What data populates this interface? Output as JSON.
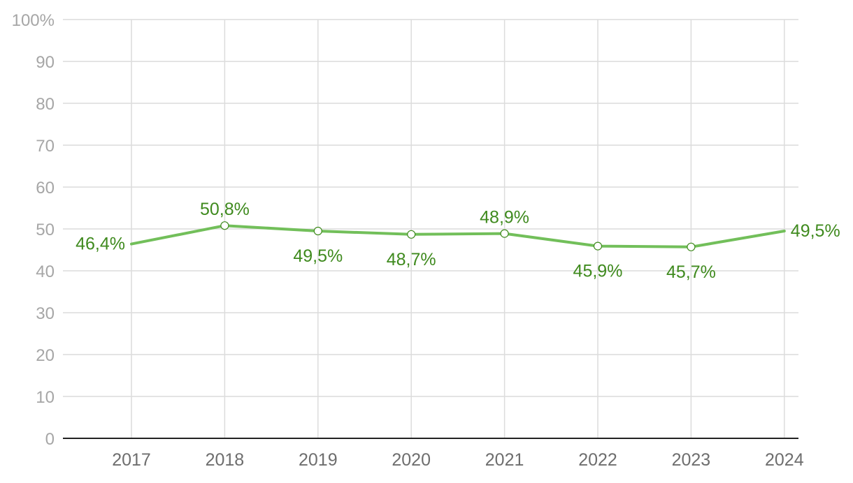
{
  "chart_data": {
    "type": "line",
    "title": "",
    "xlabel": "",
    "ylabel": "",
    "ylim": [
      0,
      100
    ],
    "yticks": [
      0,
      10,
      20,
      30,
      40,
      50,
      60,
      70,
      80,
      90,
      100
    ],
    "ytick_labels": [
      "0",
      "10",
      "20",
      "30",
      "40",
      "50",
      "60",
      "70",
      "80",
      "90",
      "100%"
    ],
    "categories": [
      "2017",
      "2018",
      "2019",
      "2020",
      "2021",
      "2022",
      "2023",
      "2024"
    ],
    "series": [
      {
        "values": [
          46.4,
          50.8,
          49.5,
          48.7,
          48.9,
          45.9,
          45.7,
          49.5
        ],
        "labels": [
          "46,4%",
          "50,8%",
          "49,5%",
          "48,7%",
          "48,9%",
          "45,9%",
          "45,7%",
          "49,5%"
        ],
        "label_positions": [
          "left",
          "above",
          "below",
          "below",
          "above",
          "below",
          "below",
          "right"
        ],
        "color": "#72bf5a",
        "label_color": "#3f8a1e"
      }
    ],
    "grid": true,
    "legend": "none"
  }
}
